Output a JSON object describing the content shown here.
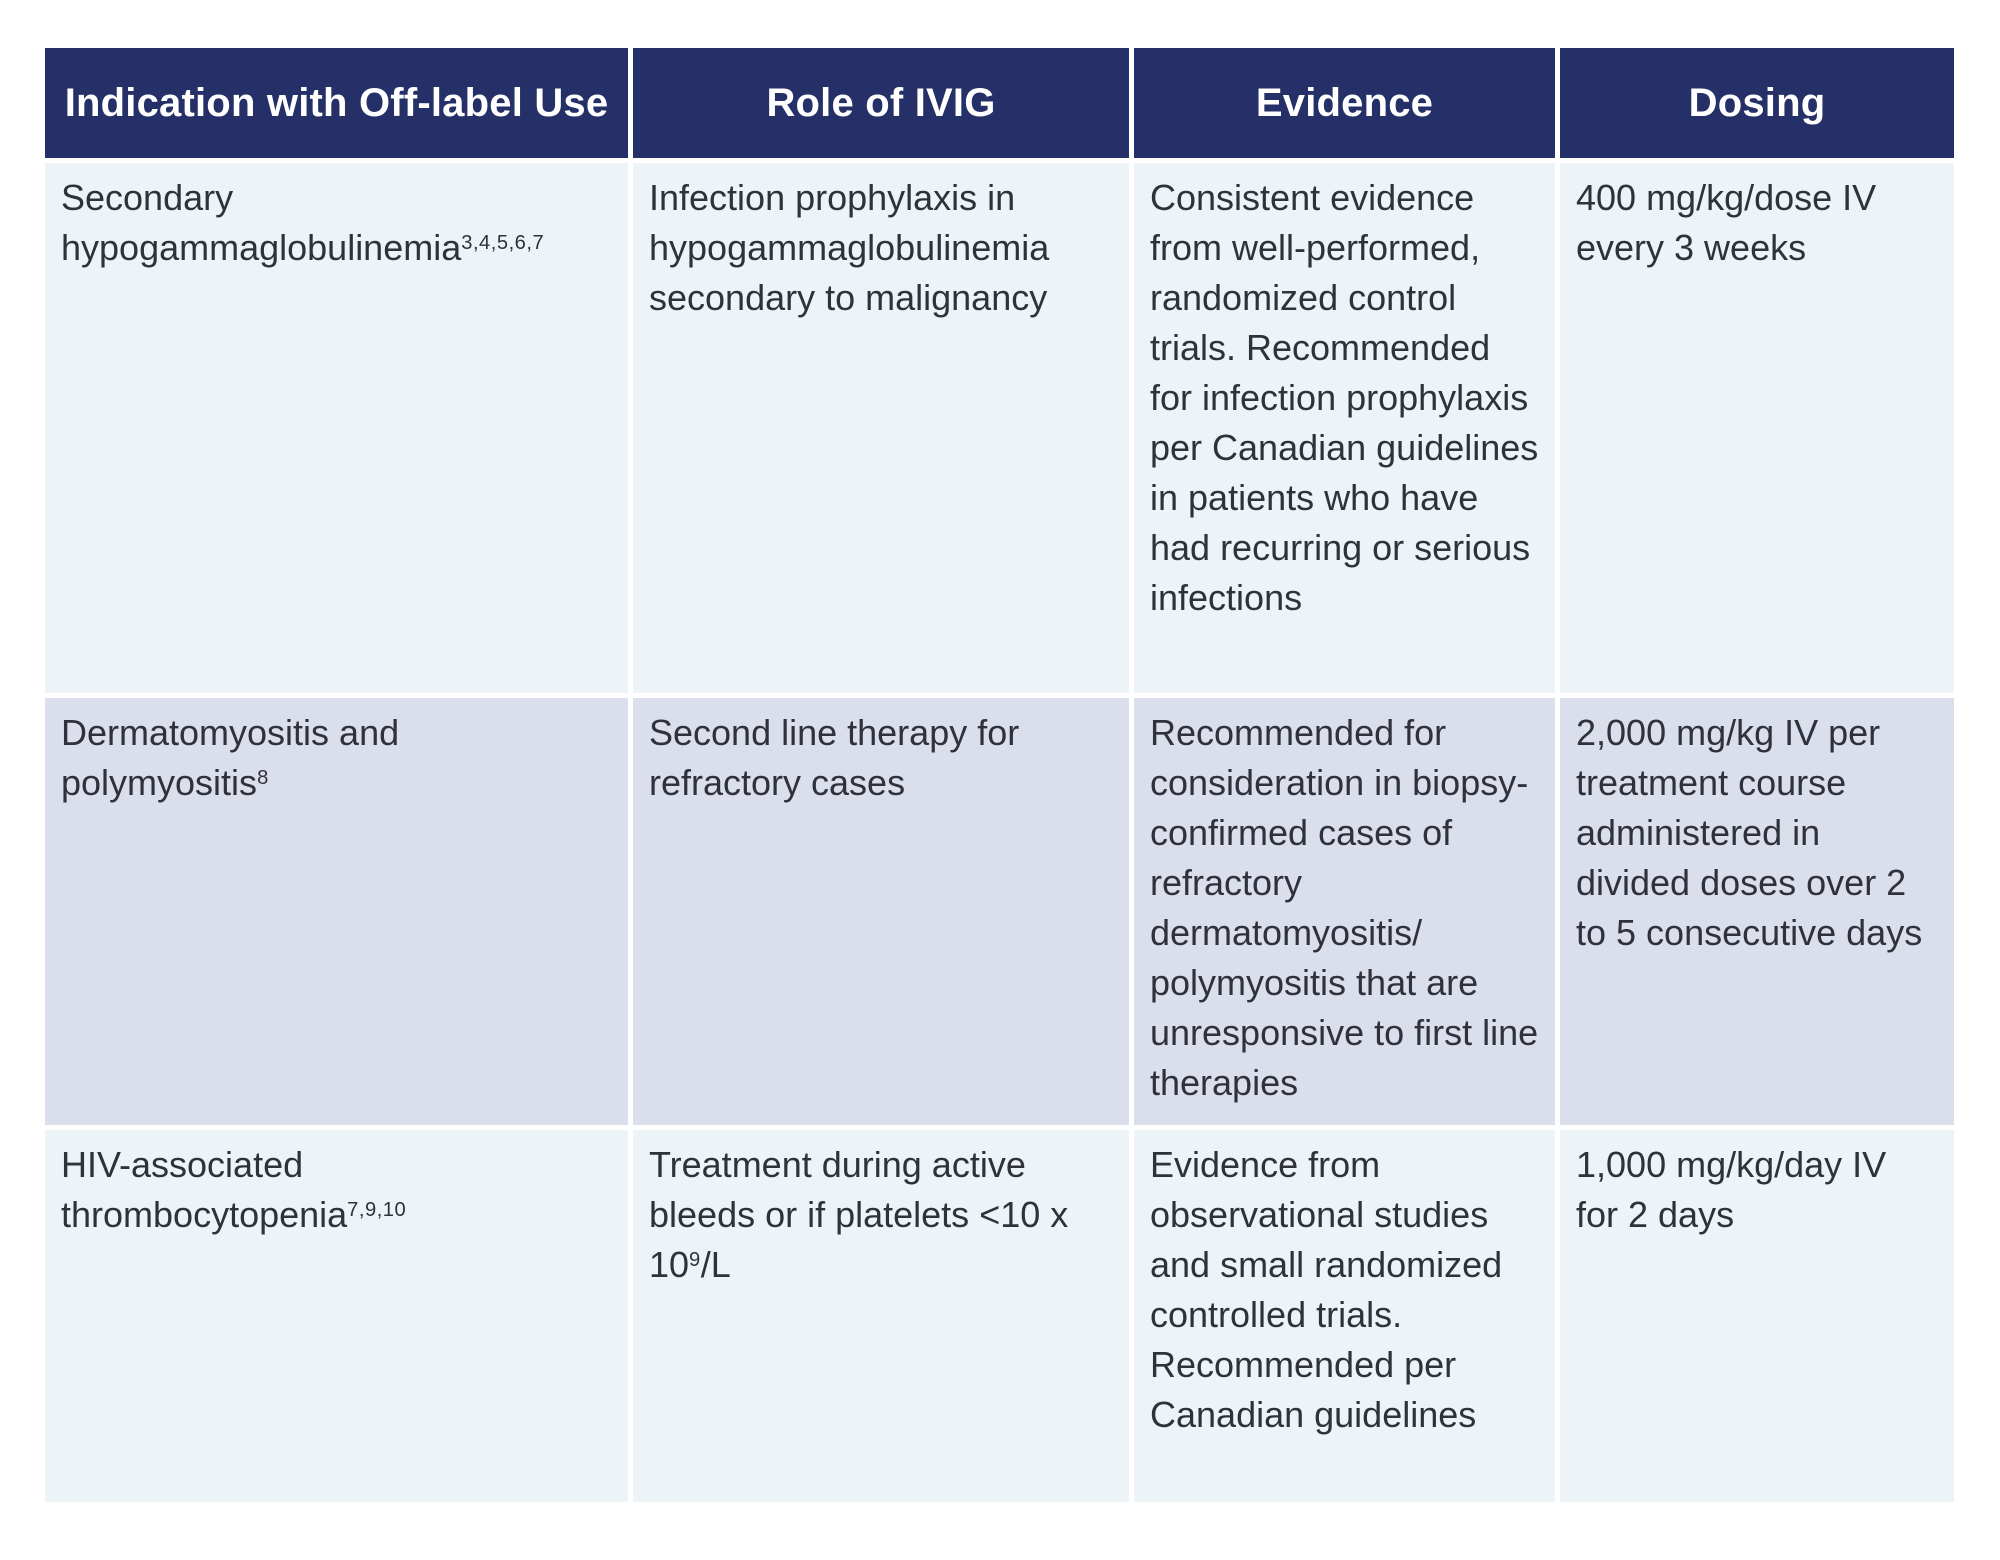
{
  "table": {
    "name": "IVIG off-label indications reference table",
    "headers": {
      "indication": "Indication with Off-label Use",
      "role": "Role of IVIG",
      "evidence": "Evidence",
      "dosing": "Dosing"
    },
    "rows": [
      {
        "indication": "Secondary hypogammaglobulinemia",
        "indication_sup": "3,4,5,6,7",
        "role": "Infection prophylaxis in hypogammaglobulinemia secondary to malignancy",
        "role_sup": "",
        "role_after": "",
        "evidence": "Consistent evidence from well-performed, randomized control trials. Recommended for infection prophylaxis per Canadian guidelines in patients who have had recurring or serious infections",
        "dosing": "400 mg/kg/dose IV every 3 weeks"
      },
      {
        "indication": "Dermatomyositis and polymyositis",
        "indication_sup": "8",
        "role": "Second line therapy for refractory cases",
        "role_sup": "",
        "role_after": "",
        "evidence": "Recommended for consideration in biopsy-confirmed cases of refractory dermatomyositis/ polymyositis that are unresponsive to first line therapies",
        "dosing": "2,000 mg/kg IV per treatment course administered in divided doses over 2 to 5 consecutive days"
      },
      {
        "indication": "HIV-associated thrombocytopenia",
        "indication_sup": "7,9,10",
        "role": "Treatment during active bleeds or if platelets <10 x 10",
        "role_sup": "9",
        "role_after": "/L",
        "evidence": "Evidence from observational studies and small randomized controlled trials. Recommended per Canadian guidelines",
        "dosing": "1,000 mg/kg/day IV for 2 days"
      }
    ],
    "colors": {
      "header_bg": "#243067",
      "header_text": "#ffffff",
      "row_light_bg": "#edf4f8",
      "row_alt_bg": "#dbdfec",
      "body_text": "#2f323a",
      "grid_gap": "#ffffff"
    }
  }
}
